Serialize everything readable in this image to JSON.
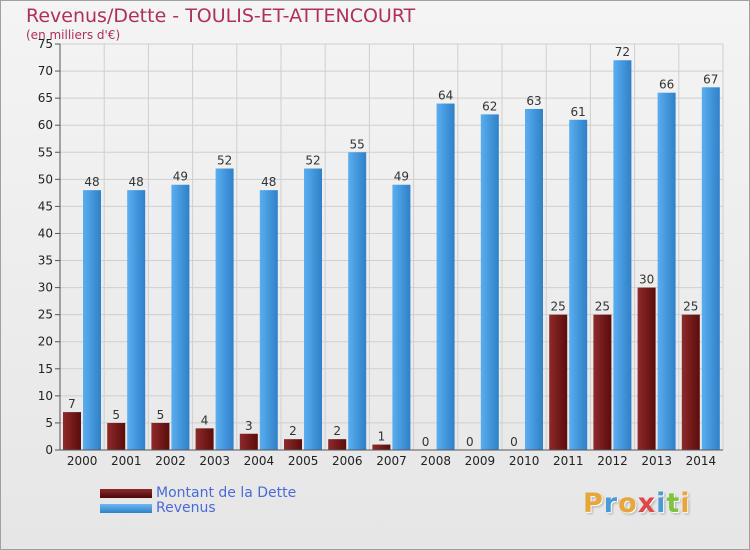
{
  "title": "Revenus/Dette - TOULIS-ET-ATTENCOURT",
  "subtitle": "(en milliers d'€)",
  "logo": {
    "text": "Proxiti",
    "colors": [
      "#e8a63a",
      "#4a9ad8",
      "#e8a63a",
      "#e04848",
      "#4a9ad8",
      "#7cc43c",
      "#e8a63a"
    ]
  },
  "colors": {
    "dette": "#7a1c1c",
    "revenus": "#3a8fd8",
    "grid": "#cfcfcf"
  },
  "chart_data": {
    "type": "bar",
    "categories": [
      "2000",
      "2001",
      "2002",
      "2003",
      "2004",
      "2005",
      "2006",
      "2007",
      "2008",
      "2009",
      "2010",
      "2011",
      "2012",
      "2013",
      "2014"
    ],
    "series": [
      {
        "name": "Montant de la Dette",
        "values": [
          7,
          5,
          5,
          4,
          3,
          2,
          2,
          1,
          0,
          0,
          0,
          25,
          25,
          30,
          25
        ]
      },
      {
        "name": "Revenus",
        "values": [
          48,
          48,
          49,
          52,
          48,
          52,
          55,
          49,
          64,
          62,
          63,
          61,
          72,
          66,
          67
        ]
      }
    ],
    "ylim": [
      0,
      75
    ],
    "yticks": [
      0,
      5,
      10,
      15,
      20,
      25,
      30,
      35,
      40,
      45,
      50,
      55,
      60,
      65,
      70,
      75
    ],
    "grid": true,
    "legend": "bottom-left"
  }
}
